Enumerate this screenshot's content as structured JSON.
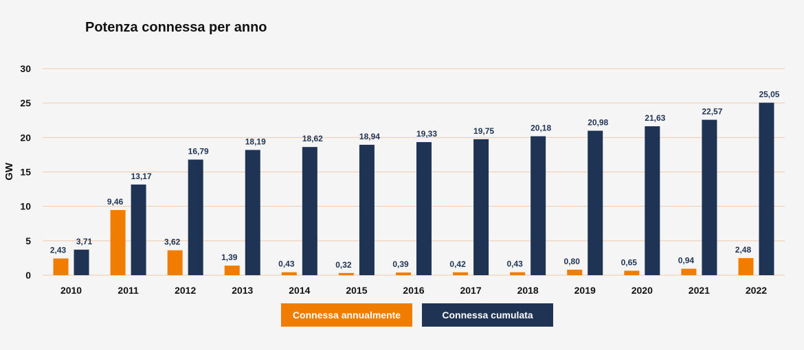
{
  "chart_data": {
    "type": "bar",
    "title": "Potenza connessa per anno",
    "xlabel": "",
    "ylabel": "GW",
    "ylim": [
      0,
      30
    ],
    "yticks": [
      0,
      5,
      10,
      15,
      20,
      25,
      30
    ],
    "grid": true,
    "legend_position": "bottom-center",
    "categories": [
      "2010",
      "2011",
      "2012",
      "2013",
      "2014",
      "2015",
      "2016",
      "2017",
      "2018",
      "2019",
      "2020",
      "2021",
      "2022"
    ],
    "series": [
      {
        "name": "Connessa annualmente",
        "color": "#f07d00",
        "values": [
          2.43,
          9.46,
          3.62,
          1.39,
          0.43,
          0.32,
          0.39,
          0.42,
          0.43,
          0.8,
          0.65,
          0.94,
          2.48
        ],
        "labels": [
          "2,43",
          "9,46",
          "3,62",
          "1,39",
          "0,43",
          "0,32",
          "0,39",
          "0,42",
          "0,43",
          "0,80",
          "0,65",
          "0,94",
          "2,48"
        ]
      },
      {
        "name": "Connessa cumulata",
        "color": "#1f3354",
        "values": [
          3.71,
          13.17,
          16.79,
          18.19,
          18.62,
          18.94,
          19.33,
          19.75,
          20.18,
          20.98,
          21.63,
          22.57,
          25.05
        ],
        "labels": [
          "3,71",
          "13,17",
          "16,79",
          "18,19",
          "18,62",
          "18,94",
          "19,33",
          "19,75",
          "20,18",
          "20,98",
          "21,63",
          "22,57",
          "25,05"
        ]
      }
    ]
  },
  "colors": {
    "background": "#f5f5f5",
    "gridline": "#f2c9a8",
    "axis_text": "#111111",
    "label_text": "#1f3354"
  }
}
